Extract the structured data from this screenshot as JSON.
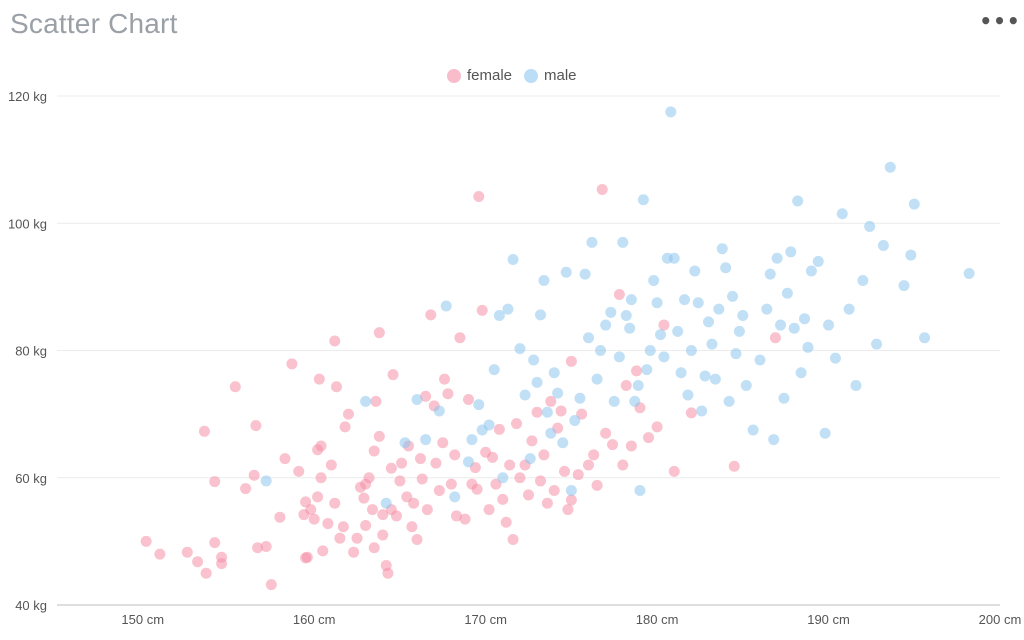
{
  "header": {
    "title": "Scatter Chart",
    "more_icon": "more-horizontal-icon",
    "more_label": "•••"
  },
  "legend": {
    "placement": "top-center",
    "items": [
      {
        "label": "female",
        "color": "#f48fa6"
      },
      {
        "label": "male",
        "color": "#8ec6ef"
      }
    ]
  },
  "chart_data": {
    "type": "scatter",
    "title": "Scatter Chart",
    "xlabel": "",
    "ylabel": "",
    "xlim": [
      145,
      200
    ],
    "ylim": [
      40,
      120
    ],
    "x_ticks": [
      150,
      160,
      170,
      180,
      190,
      200
    ],
    "y_ticks": [
      40,
      60,
      80,
      100,
      120
    ],
    "x_tick_labels": [
      "150 cm",
      "160 cm",
      "170 cm",
      "180 cm",
      "190 cm",
      "200 cm"
    ],
    "y_tick_labels": [
      "40 kg",
      "60 kg",
      "80 kg",
      "100 kg",
      "120 kg"
    ],
    "grid": {
      "horizontal": true,
      "vertical": false
    },
    "series": [
      {
        "name": "female",
        "color": "#f48fa6",
        "points": [
          [
            150.2,
            50
          ],
          [
            151,
            48
          ],
          [
            152.6,
            48.3
          ],
          [
            153.2,
            46.8
          ],
          [
            153.7,
            45
          ],
          [
            154.2,
            49.8
          ],
          [
            154.6,
            46.5
          ],
          [
            154.6,
            47.5
          ],
          [
            153.6,
            67.3
          ],
          [
            154.2,
            59.4
          ],
          [
            155.4,
            74.3
          ],
          [
            156,
            58.3
          ],
          [
            156.6,
            68.2
          ],
          [
            156.5,
            60.4
          ],
          [
            156.7,
            49
          ],
          [
            157.2,
            49.2
          ],
          [
            157.5,
            43.2
          ],
          [
            158,
            53.8
          ],
          [
            158.3,
            63
          ],
          [
            158.7,
            77.9
          ],
          [
            159.1,
            61
          ],
          [
            159.5,
            56.2
          ],
          [
            159.4,
            54.2
          ],
          [
            159.8,
            55
          ],
          [
            159.5,
            47.4
          ],
          [
            159.6,
            47.5
          ],
          [
            160,
            53.5
          ],
          [
            160.2,
            57
          ],
          [
            160.4,
            60
          ],
          [
            160.4,
            65
          ],
          [
            160.2,
            64.4
          ],
          [
            160.3,
            75.5
          ],
          [
            160.8,
            52.8
          ],
          [
            160.5,
            48.5
          ],
          [
            161,
            62
          ],
          [
            161.2,
            81.5
          ],
          [
            161.3,
            74.3
          ],
          [
            161.2,
            56
          ],
          [
            161.5,
            50.5
          ],
          [
            161.7,
            52.3
          ],
          [
            161.8,
            68
          ],
          [
            162,
            70
          ],
          [
            162.3,
            48.3
          ],
          [
            162.5,
            50.5
          ],
          [
            162.7,
            58.5
          ],
          [
            162.9,
            56.8
          ],
          [
            163,
            59
          ],
          [
            163,
            52.5
          ],
          [
            163.2,
            60
          ],
          [
            163.4,
            55
          ],
          [
            163.5,
            64.2
          ],
          [
            163.5,
            49
          ],
          [
            163.6,
            72
          ],
          [
            163.8,
            66.5
          ],
          [
            163.8,
            82.8
          ],
          [
            164,
            54.2
          ],
          [
            164,
            51
          ],
          [
            164.2,
            46.2
          ],
          [
            164.3,
            45
          ],
          [
            164.5,
            55
          ],
          [
            164.5,
            61.5
          ],
          [
            164.6,
            76.2
          ],
          [
            164.8,
            54
          ],
          [
            165,
            59.5
          ],
          [
            165.1,
            62.3
          ],
          [
            165.4,
            57
          ],
          [
            165.5,
            65
          ],
          [
            165.7,
            52.3
          ],
          [
            165.8,
            56
          ],
          [
            166,
            50.3
          ],
          [
            166.2,
            63
          ],
          [
            166.3,
            59.8
          ],
          [
            166.5,
            72.8
          ],
          [
            166.6,
            55
          ],
          [
            166.8,
            85.6
          ],
          [
            167,
            71.3
          ],
          [
            167.1,
            62.3
          ],
          [
            167.3,
            58
          ],
          [
            167.5,
            65.5
          ],
          [
            167.6,
            75.5
          ],
          [
            167.8,
            73.2
          ],
          [
            168,
            59
          ],
          [
            168.2,
            63.6
          ],
          [
            168.3,
            54
          ],
          [
            168.5,
            82
          ],
          [
            168.8,
            53.5
          ],
          [
            169,
            72.3
          ],
          [
            169.2,
            59
          ],
          [
            169.4,
            61.6
          ],
          [
            169.5,
            58.2
          ],
          [
            169.6,
            104.2
          ],
          [
            169.8,
            86.3
          ],
          [
            170,
            64
          ],
          [
            170.2,
            55
          ],
          [
            170.4,
            63.2
          ],
          [
            170.6,
            59
          ],
          [
            170.8,
            67.6
          ],
          [
            171,
            56.6
          ],
          [
            171.2,
            53
          ],
          [
            171.4,
            62
          ],
          [
            171.6,
            50.3
          ],
          [
            171.8,
            68.5
          ],
          [
            172,
            60
          ],
          [
            172.3,
            62
          ],
          [
            172.5,
            57.3
          ],
          [
            172.7,
            65.8
          ],
          [
            173,
            70.3
          ],
          [
            173.2,
            59.5
          ],
          [
            173.4,
            63.6
          ],
          [
            173.6,
            56
          ],
          [
            173.8,
            72
          ],
          [
            174,
            58
          ],
          [
            174.2,
            67.8
          ],
          [
            174.4,
            70.5
          ],
          [
            174.6,
            61
          ],
          [
            174.8,
            55
          ],
          [
            175,
            56.5
          ],
          [
            175,
            78.3
          ],
          [
            175.4,
            60.5
          ],
          [
            175.6,
            70
          ],
          [
            176,
            62
          ],
          [
            176.3,
            63.6
          ],
          [
            176.5,
            58.8
          ],
          [
            176.8,
            105.3
          ],
          [
            177,
            67
          ],
          [
            177.4,
            65.2
          ],
          [
            177.8,
            88.8
          ],
          [
            178,
            62
          ],
          [
            178.2,
            74.5
          ],
          [
            178.5,
            65
          ],
          [
            178.8,
            76.8
          ],
          [
            179,
            71
          ],
          [
            179.5,
            66.3
          ],
          [
            180,
            68
          ],
          [
            180.4,
            84
          ],
          [
            181,
            61
          ],
          [
            182,
            70.2
          ],
          [
            184.5,
            61.8
          ],
          [
            186.9,
            82
          ]
        ]
      },
      {
        "name": "male",
        "color": "#8ec6ef",
        "points": [
          [
            157.2,
            59.5
          ],
          [
            163,
            72
          ],
          [
            164.2,
            56
          ],
          [
            165.3,
            65.5
          ],
          [
            166,
            72.3
          ],
          [
            166.5,
            66
          ],
          [
            167.3,
            70.5
          ],
          [
            167.7,
            87
          ],
          [
            168.2,
            57
          ],
          [
            169,
            62.5
          ],
          [
            169.2,
            66
          ],
          [
            169.6,
            71.5
          ],
          [
            169.8,
            67.5
          ],
          [
            170.2,
            68.3
          ],
          [
            170.5,
            77
          ],
          [
            170.8,
            85.5
          ],
          [
            171,
            60
          ],
          [
            171.3,
            86.5
          ],
          [
            171.6,
            94.3
          ],
          [
            172,
            80.3
          ],
          [
            172.3,
            73
          ],
          [
            172.6,
            63
          ],
          [
            172.8,
            78.5
          ],
          [
            173,
            75
          ],
          [
            173.2,
            85.6
          ],
          [
            173.4,
            91
          ],
          [
            173.6,
            70.3
          ],
          [
            173.8,
            67
          ],
          [
            174,
            76.5
          ],
          [
            174.2,
            73.3
          ],
          [
            174.5,
            65.5
          ],
          [
            174.7,
            92.3
          ],
          [
            175,
            58
          ],
          [
            175.2,
            69
          ],
          [
            175.5,
            72.5
          ],
          [
            175.8,
            92
          ],
          [
            176,
            82
          ],
          [
            176.2,
            97
          ],
          [
            176.5,
            75.5
          ],
          [
            176.7,
            80
          ],
          [
            177,
            84
          ],
          [
            177.3,
            86
          ],
          [
            177.5,
            72
          ],
          [
            177.8,
            79
          ],
          [
            178,
            97
          ],
          [
            178.2,
            85.5
          ],
          [
            178.4,
            83.5
          ],
          [
            178.5,
            88
          ],
          [
            178.7,
            72
          ],
          [
            178.9,
            74.5
          ],
          [
            179,
            58
          ],
          [
            179.2,
            103.7
          ],
          [
            179.4,
            77
          ],
          [
            179.6,
            80
          ],
          [
            179.8,
            91
          ],
          [
            180,
            87.5
          ],
          [
            180.2,
            82.5
          ],
          [
            180.4,
            79
          ],
          [
            180.6,
            94.5
          ],
          [
            180.8,
            117.5
          ],
          [
            181,
            94.5
          ],
          [
            181.2,
            83
          ],
          [
            181.4,
            76.5
          ],
          [
            181.6,
            88
          ],
          [
            181.8,
            73
          ],
          [
            182,
            80
          ],
          [
            182.2,
            92.5
          ],
          [
            182.4,
            87.5
          ],
          [
            182.6,
            70.5
          ],
          [
            182.8,
            76
          ],
          [
            183,
            84.5
          ],
          [
            183.2,
            81
          ],
          [
            183.4,
            75.5
          ],
          [
            183.6,
            86.5
          ],
          [
            183.8,
            96
          ],
          [
            184,
            93
          ],
          [
            184.2,
            72
          ],
          [
            184.4,
            88.5
          ],
          [
            184.6,
            79.5
          ],
          [
            184.8,
            83
          ],
          [
            185,
            85.5
          ],
          [
            185.2,
            74.5
          ],
          [
            185.6,
            67.5
          ],
          [
            186,
            78.5
          ],
          [
            186.4,
            86.5
          ],
          [
            186.6,
            92
          ],
          [
            186.8,
            66
          ],
          [
            187,
            94.5
          ],
          [
            187.2,
            84
          ],
          [
            187.4,
            72.5
          ],
          [
            187.6,
            89
          ],
          [
            187.8,
            95.5
          ],
          [
            188,
            83.5
          ],
          [
            188.2,
            103.5
          ],
          [
            188.4,
            76.5
          ],
          [
            188.6,
            85
          ],
          [
            188.8,
            80.5
          ],
          [
            189,
            92.5
          ],
          [
            189.4,
            94
          ],
          [
            189.8,
            67
          ],
          [
            190,
            84
          ],
          [
            190.4,
            78.8
          ],
          [
            190.8,
            101.5
          ],
          [
            191.2,
            86.5
          ],
          [
            191.6,
            74.5
          ],
          [
            192,
            91
          ],
          [
            192.4,
            99.5
          ],
          [
            192.8,
            81
          ],
          [
            193.2,
            96.5
          ],
          [
            193.6,
            108.8
          ],
          [
            194.4,
            90.2
          ],
          [
            194.8,
            95
          ],
          [
            195,
            103
          ],
          [
            195.6,
            82
          ],
          [
            198.2,
            92.1
          ]
        ]
      }
    ]
  }
}
